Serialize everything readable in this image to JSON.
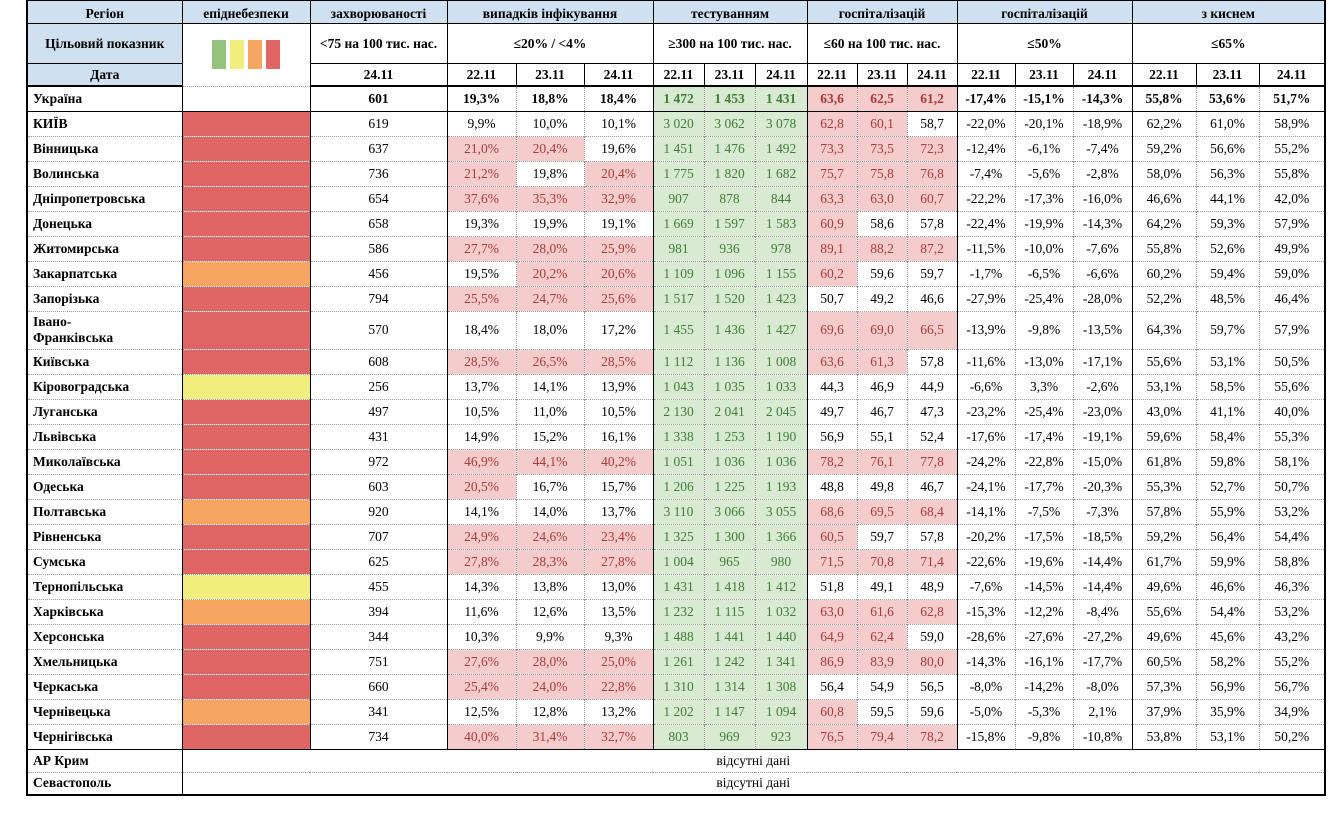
{
  "colors": {
    "header_bg": "#cfe1f1",
    "pink_bg": "#f4cccc",
    "pink_text": "#ab3a38",
    "green_bg": "#d9ead3",
    "green_text": "#417d36",
    "danger_green": "#93c47d",
    "danger_yellow": "#f2ee7d",
    "danger_orange": "#f6a660",
    "danger_red": "#e06666"
  },
  "table": {
    "region_header": "Регіон",
    "target_row_label": "Цільовий показник",
    "date_row_label": "Дата",
    "no_data_text": "відсутні дані",
    "legend_order": [
      "danger_green",
      "danger_yellow",
      "danger_orange",
      "danger_red"
    ],
    "groups": [
      {
        "key": "danger",
        "title": "епіднебезпеки",
        "target_type": "legend",
        "target": "",
        "dates": []
      },
      {
        "key": "incidence",
        "title": "захворюваності",
        "target": "<75 на 100 тис. нас.",
        "dates": [
          "24.11"
        ]
      },
      {
        "key": "positive",
        "title": "випадків інфікування",
        "target": "≤20% / <4%",
        "dates": [
          "22.11",
          "23.11",
          "24.11"
        ]
      },
      {
        "key": "testing",
        "title": "тестуванням",
        "target": "≥300 на 100 тис. нас.",
        "dates": [
          "22.11",
          "23.11",
          "24.11"
        ]
      },
      {
        "key": "hosp",
        "title": "госпіталізацій",
        "target": "≤60 на 100 тис. нас.",
        "dates": [
          "22.11",
          "23.11",
          "24.11"
        ]
      },
      {
        "key": "dynamics",
        "title": "госпіталізацій",
        "target": "≤50%",
        "dates": [
          "22.11",
          "23.11",
          "24.11"
        ]
      },
      {
        "key": "oxygen",
        "title": "з киснем",
        "target": "≤65%",
        "dates": [
          "22.11",
          "23.11",
          "24.11"
        ]
      }
    ],
    "rows": [
      {
        "name": "Україна",
        "bold": true,
        "danger": "",
        "incidence": "601",
        "positive": [
          "19,3%",
          "18,8%",
          "18,4%"
        ],
        "positive_alert": [
          0,
          0,
          0
        ],
        "testing": [
          "1 472",
          "1 453",
          "1 431"
        ],
        "hosp": [
          "63,6",
          "62,5",
          "61,2"
        ],
        "hosp_alert": [
          1,
          1,
          1
        ],
        "dynamics": [
          "-17,4%",
          "-15,1%",
          "-14,3%"
        ],
        "oxygen": [
          "55,8%",
          "53,6%",
          "51,7%"
        ]
      },
      {
        "name": "КИЇВ",
        "solid_top": true,
        "danger": "red",
        "incidence": "619",
        "positive": [
          "9,9%",
          "10,0%",
          "10,1%"
        ],
        "positive_alert": [
          0,
          0,
          0
        ],
        "testing": [
          "3 020",
          "3 062",
          "3 078"
        ],
        "hosp": [
          "62,8",
          "60,1",
          "58,7"
        ],
        "hosp_alert": [
          1,
          1,
          0
        ],
        "dynamics": [
          "-22,0%",
          "-20,1%",
          "-18,9%"
        ],
        "oxygen": [
          "62,2%",
          "61,0%",
          "58,9%"
        ]
      },
      {
        "name": "Вінницька",
        "danger": "red",
        "incidence": "637",
        "positive": [
          "21,0%",
          "20,4%",
          "19,6%"
        ],
        "positive_alert": [
          1,
          1,
          0
        ],
        "testing": [
          "1 451",
          "1 476",
          "1 492"
        ],
        "hosp": [
          "73,3",
          "73,5",
          "72,3"
        ],
        "hosp_alert": [
          1,
          1,
          1
        ],
        "dynamics": [
          "-12,4%",
          "-6,1%",
          "-7,4%"
        ],
        "oxygen": [
          "59,2%",
          "56,6%",
          "55,2%"
        ]
      },
      {
        "name": "Волинська",
        "danger": "red",
        "incidence": "736",
        "positive": [
          "21,2%",
          "19,8%",
          "20,4%"
        ],
        "positive_alert": [
          1,
          0,
          1
        ],
        "testing": [
          "1 775",
          "1 820",
          "1 682"
        ],
        "hosp": [
          "75,7",
          "75,8",
          "76,8"
        ],
        "hosp_alert": [
          1,
          1,
          1
        ],
        "dynamics": [
          "-7,4%",
          "-5,6%",
          "-2,8%"
        ],
        "oxygen": [
          "58,0%",
          "56,3%",
          "55,8%"
        ]
      },
      {
        "name": "Дніпропетровська",
        "danger": "red",
        "incidence": "654",
        "positive": [
          "37,6%",
          "35,3%",
          "32,9%"
        ],
        "positive_alert": [
          1,
          1,
          1
        ],
        "testing": [
          "907",
          "878",
          "844"
        ],
        "hosp": [
          "63,3",
          "63,0",
          "60,7"
        ],
        "hosp_alert": [
          1,
          1,
          1
        ],
        "dynamics": [
          "-22,2%",
          "-17,3%",
          "-16,0%"
        ],
        "oxygen": [
          "46,6%",
          "44,1%",
          "42,0%"
        ]
      },
      {
        "name": "Донецька",
        "danger": "red",
        "incidence": "658",
        "positive": [
          "19,3%",
          "19,9%",
          "19,1%"
        ],
        "positive_alert": [
          0,
          0,
          0
        ],
        "testing": [
          "1 669",
          "1 597",
          "1 583"
        ],
        "hosp": [
          "60,9",
          "58,6",
          "57,8"
        ],
        "hosp_alert": [
          1,
          0,
          0
        ],
        "dynamics": [
          "-22,4%",
          "-19,9%",
          "-14,3%"
        ],
        "oxygen": [
          "64,2%",
          "59,3%",
          "57,9%"
        ]
      },
      {
        "name": "Житомирська",
        "danger": "red",
        "incidence": "586",
        "positive": [
          "27,7%",
          "28,0%",
          "25,9%"
        ],
        "positive_alert": [
          1,
          1,
          1
        ],
        "testing": [
          "981",
          "936",
          "978"
        ],
        "hosp": [
          "89,1",
          "88,2",
          "87,2"
        ],
        "hosp_alert": [
          1,
          1,
          1
        ],
        "dynamics": [
          "-11,5%",
          "-10,0%",
          "-7,6%"
        ],
        "oxygen": [
          "55,8%",
          "52,6%",
          "49,9%"
        ]
      },
      {
        "name": "Закарпатська",
        "danger": "orange",
        "incidence": "456",
        "positive": [
          "19,5%",
          "20,2%",
          "20,6%"
        ],
        "positive_alert": [
          0,
          1,
          1
        ],
        "testing": [
          "1 109",
          "1 096",
          "1 155"
        ],
        "hosp": [
          "60,2",
          "59,6",
          "59,7"
        ],
        "hosp_alert": [
          1,
          0,
          0
        ],
        "dynamics": [
          "-1,7%",
          "-6,5%",
          "-6,6%"
        ],
        "oxygen": [
          "60,2%",
          "59,4%",
          "59,0%"
        ]
      },
      {
        "name": "Запорізька",
        "danger": "red",
        "incidence": "794",
        "positive": [
          "25,5%",
          "24,7%",
          "25,6%"
        ],
        "positive_alert": [
          1,
          1,
          1
        ],
        "testing": [
          "1 517",
          "1 520",
          "1 423"
        ],
        "hosp": [
          "50,7",
          "49,2",
          "46,6"
        ],
        "hosp_alert": [
          0,
          0,
          0
        ],
        "dynamics": [
          "-27,9%",
          "-25,4%",
          "-28,0%"
        ],
        "oxygen": [
          "52,2%",
          "48,5%",
          "46,4%"
        ]
      },
      {
        "name": "Івано-\nФранківська",
        "tall": true,
        "danger": "red",
        "incidence": "570",
        "positive": [
          "18,4%",
          "18,0%",
          "17,2%"
        ],
        "positive_alert": [
          0,
          0,
          0
        ],
        "testing": [
          "1 455",
          "1 436",
          "1 427"
        ],
        "hosp": [
          "69,6",
          "69,0",
          "66,5"
        ],
        "hosp_alert": [
          1,
          1,
          1
        ],
        "dynamics": [
          "-13,9%",
          "-9,8%",
          "-13,5%"
        ],
        "oxygen": [
          "64,3%",
          "59,7%",
          "57,9%"
        ]
      },
      {
        "name": "Київська",
        "danger": "red",
        "incidence": "608",
        "positive": [
          "28,5%",
          "26,5%",
          "28,5%"
        ],
        "positive_alert": [
          1,
          1,
          1
        ],
        "testing": [
          "1 112",
          "1 136",
          "1 008"
        ],
        "hosp": [
          "63,6",
          "61,3",
          "57,8"
        ],
        "hosp_alert": [
          1,
          1,
          0
        ],
        "dynamics": [
          "-11,6%",
          "-13,0%",
          "-17,1%"
        ],
        "oxygen": [
          "55,6%",
          "53,1%",
          "50,5%"
        ]
      },
      {
        "name": "Кіровоградська",
        "danger": "yellow",
        "incidence": "256",
        "positive": [
          "13,7%",
          "14,1%",
          "13,9%"
        ],
        "positive_alert": [
          0,
          0,
          0
        ],
        "testing": [
          "1 043",
          "1 035",
          "1 033"
        ],
        "hosp": [
          "44,3",
          "46,9",
          "44,9"
        ],
        "hosp_alert": [
          0,
          0,
          0
        ],
        "dynamics": [
          "-6,6%",
          "3,3%",
          "-2,6%"
        ],
        "oxygen": [
          "53,1%",
          "58,5%",
          "55,6%"
        ]
      },
      {
        "name": "Луганська",
        "danger": "red",
        "incidence": "497",
        "positive": [
          "10,5%",
          "11,0%",
          "10,5%"
        ],
        "positive_alert": [
          0,
          0,
          0
        ],
        "testing": [
          "2 130",
          "2 041",
          "2 045"
        ],
        "hosp": [
          "49,7",
          "46,7",
          "47,3"
        ],
        "hosp_alert": [
          0,
          0,
          0
        ],
        "dynamics": [
          "-23,2%",
          "-25,4%",
          "-23,0%"
        ],
        "oxygen": [
          "43,0%",
          "41,1%",
          "40,0%"
        ]
      },
      {
        "name": "Львівська",
        "danger": "red",
        "incidence": "431",
        "positive": [
          "14,9%",
          "15,2%",
          "16,1%"
        ],
        "positive_alert": [
          0,
          0,
          0
        ],
        "testing": [
          "1 338",
          "1 253",
          "1 190"
        ],
        "hosp": [
          "56,9",
          "55,1",
          "52,4"
        ],
        "hosp_alert": [
          0,
          0,
          0
        ],
        "dynamics": [
          "-17,6%",
          "-17,4%",
          "-19,1%"
        ],
        "oxygen": [
          "59,6%",
          "58,4%",
          "55,3%"
        ]
      },
      {
        "name": "Миколаївська",
        "danger": "red",
        "incidence": "972",
        "positive": [
          "46,9%",
          "44,1%",
          "40,2%"
        ],
        "positive_alert": [
          1,
          1,
          1
        ],
        "testing": [
          "1 051",
          "1 036",
          "1 036"
        ],
        "hosp": [
          "78,2",
          "76,1",
          "77,8"
        ],
        "hosp_alert": [
          1,
          1,
          1
        ],
        "dynamics": [
          "-24,2%",
          "-22,8%",
          "-15,0%"
        ],
        "oxygen": [
          "61,8%",
          "59,8%",
          "58,1%"
        ]
      },
      {
        "name": "Одеська",
        "danger": "red",
        "incidence": "603",
        "positive": [
          "20,5%",
          "16,7%",
          "15,7%"
        ],
        "positive_alert": [
          1,
          0,
          0
        ],
        "testing": [
          "1 206",
          "1 225",
          "1 193"
        ],
        "hosp": [
          "48,8",
          "49,8",
          "46,7"
        ],
        "hosp_alert": [
          0,
          0,
          0
        ],
        "dynamics": [
          "-24,1%",
          "-17,7%",
          "-20,3%"
        ],
        "oxygen": [
          "55,3%",
          "52,7%",
          "50,7%"
        ]
      },
      {
        "name": "Полтавська",
        "danger": "orange",
        "incidence": "920",
        "positive": [
          "14,1%",
          "14,0%",
          "13,7%"
        ],
        "positive_alert": [
          0,
          0,
          0
        ],
        "testing": [
          "3 110",
          "3 066",
          "3 055"
        ],
        "hosp": [
          "68,6",
          "69,5",
          "68,4"
        ],
        "hosp_alert": [
          1,
          1,
          1
        ],
        "dynamics": [
          "-14,1%",
          "-7,5%",
          "-7,3%"
        ],
        "oxygen": [
          "57,8%",
          "55,9%",
          "53,2%"
        ]
      },
      {
        "name": "Рівненська",
        "danger": "red",
        "incidence": "707",
        "positive": [
          "24,9%",
          "24,6%",
          "23,4%"
        ],
        "positive_alert": [
          1,
          1,
          1
        ],
        "testing": [
          "1 325",
          "1 300",
          "1 366"
        ],
        "hosp": [
          "60,5",
          "59,7",
          "57,8"
        ],
        "hosp_alert": [
          1,
          0,
          0
        ],
        "dynamics": [
          "-20,2%",
          "-17,5%",
          "-18,5%"
        ],
        "oxygen": [
          "59,2%",
          "56,4%",
          "54,4%"
        ]
      },
      {
        "name": "Сумська",
        "danger": "red",
        "incidence": "625",
        "positive": [
          "27,8%",
          "28,3%",
          "27,8%"
        ],
        "positive_alert": [
          1,
          1,
          1
        ],
        "testing": [
          "1 004",
          "965",
          "980"
        ],
        "hosp": [
          "71,5",
          "70,8",
          "71,4"
        ],
        "hosp_alert": [
          1,
          1,
          1
        ],
        "dynamics": [
          "-22,6%",
          "-19,6%",
          "-14,4%"
        ],
        "oxygen": [
          "61,7%",
          "59,9%",
          "58,8%"
        ]
      },
      {
        "name": "Тернопільська",
        "danger": "yellow",
        "incidence": "455",
        "positive": [
          "14,3%",
          "13,8%",
          "13,0%"
        ],
        "positive_alert": [
          0,
          0,
          0
        ],
        "testing": [
          "1 431",
          "1 418",
          "1 412"
        ],
        "hosp": [
          "51,8",
          "49,1",
          "48,9"
        ],
        "hosp_alert": [
          0,
          0,
          0
        ],
        "dynamics": [
          "-7,6%",
          "-14,5%",
          "-14,4%"
        ],
        "oxygen": [
          "49,6%",
          "46,6%",
          "46,3%"
        ]
      },
      {
        "name": "Харківська",
        "danger": "orange",
        "incidence": "394",
        "positive": [
          "11,6%",
          "12,6%",
          "13,5%"
        ],
        "positive_alert": [
          0,
          0,
          0
        ],
        "testing": [
          "1 232",
          "1 115",
          "1 032"
        ],
        "hosp": [
          "63,0",
          "61,6",
          "62,8"
        ],
        "hosp_alert": [
          1,
          1,
          1
        ],
        "dynamics": [
          "-15,3%",
          "-12,2%",
          "-8,4%"
        ],
        "oxygen": [
          "55,6%",
          "54,4%",
          "53,2%"
        ]
      },
      {
        "name": "Херсонська",
        "danger": "red",
        "incidence": "344",
        "positive": [
          "10,3%",
          "9,9%",
          "9,3%"
        ],
        "positive_alert": [
          0,
          0,
          0
        ],
        "testing": [
          "1 488",
          "1 441",
          "1 440"
        ],
        "hosp": [
          "64,9",
          "62,4",
          "59,0"
        ],
        "hosp_alert": [
          1,
          1,
          0
        ],
        "dynamics": [
          "-28,6%",
          "-27,6%",
          "-27,2%"
        ],
        "oxygen": [
          "49,6%",
          "45,6%",
          "43,2%"
        ]
      },
      {
        "name": "Хмельницька",
        "danger": "red",
        "incidence": "751",
        "positive": [
          "27,6%",
          "28,0%",
          "25,0%"
        ],
        "positive_alert": [
          1,
          1,
          1
        ],
        "testing": [
          "1 261",
          "1 242",
          "1 341"
        ],
        "hosp": [
          "86,9",
          "83,9",
          "80,0"
        ],
        "hosp_alert": [
          1,
          1,
          1
        ],
        "dynamics": [
          "-14,3%",
          "-16,1%",
          "-17,7%"
        ],
        "oxygen": [
          "60,5%",
          "58,2%",
          "55,2%"
        ]
      },
      {
        "name": "Черкаська",
        "danger": "red",
        "incidence": "660",
        "positive": [
          "25,4%",
          "24,0%",
          "22,8%"
        ],
        "positive_alert": [
          1,
          1,
          1
        ],
        "testing": [
          "1 310",
          "1 314",
          "1 308"
        ],
        "hosp": [
          "56,4",
          "54,9",
          "56,5"
        ],
        "hosp_alert": [
          0,
          0,
          0
        ],
        "dynamics": [
          "-8,0%",
          "-14,2%",
          "-8,0%"
        ],
        "oxygen": [
          "57,3%",
          "56,9%",
          "56,7%"
        ]
      },
      {
        "name": "Чернівецька",
        "danger": "orange",
        "incidence": "341",
        "positive": [
          "12,5%",
          "12,8%",
          "13,2%"
        ],
        "positive_alert": [
          0,
          0,
          0
        ],
        "testing": [
          "1 202",
          "1 147",
          "1 094"
        ],
        "hosp": [
          "60,8",
          "59,5",
          "59,6"
        ],
        "hosp_alert": [
          1,
          0,
          0
        ],
        "dynamics": [
          "-5,0%",
          "-5,3%",
          "2,1%"
        ],
        "oxygen": [
          "37,9%",
          "35,9%",
          "34,9%"
        ]
      },
      {
        "name": "Чернігівська",
        "danger": "red",
        "incidence": "734",
        "positive": [
          "40,0%",
          "31,4%",
          "32,7%"
        ],
        "positive_alert": [
          1,
          1,
          1
        ],
        "testing": [
          "803",
          "969",
          "923"
        ],
        "hosp": [
          "76,5",
          "79,4",
          "78,2"
        ],
        "hosp_alert": [
          1,
          1,
          1
        ],
        "dynamics": [
          "-15,8%",
          "-9,8%",
          "-10,8%"
        ],
        "oxygen": [
          "53,8%",
          "53,1%",
          "50,2%"
        ]
      },
      {
        "name": "АР Крим",
        "solid_top": true,
        "no_data": true
      },
      {
        "name": "Севастополь",
        "no_data": true
      }
    ]
  }
}
